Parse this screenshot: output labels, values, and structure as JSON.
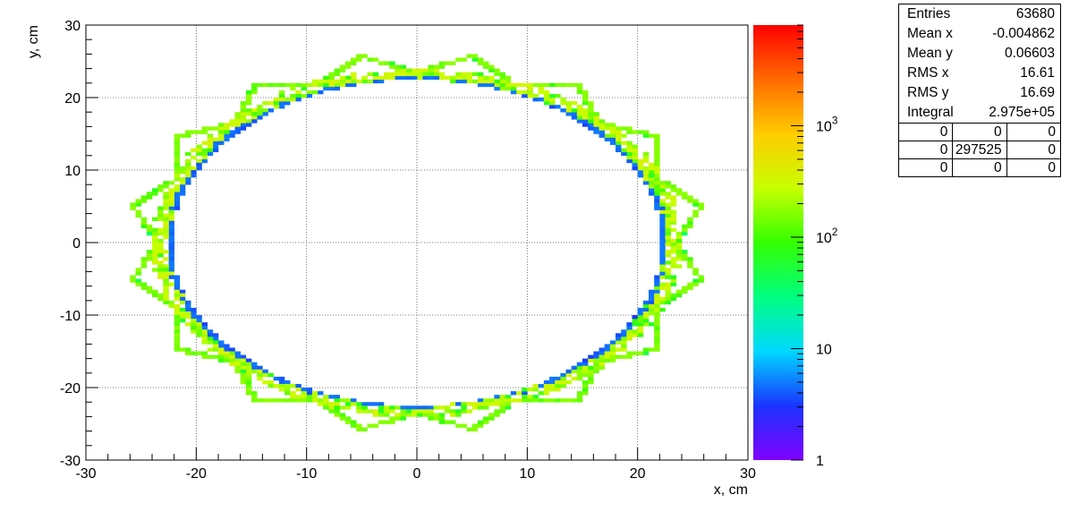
{
  "chart_data": {
    "type": "heatmap",
    "title": "",
    "xlabel": "x, cm",
    "ylabel": "y, cm",
    "xlim": [
      -30,
      30
    ],
    "ylim": [
      -30,
      30
    ],
    "x_ticks": [
      "-30",
      "-20",
      "-10",
      "0",
      "10",
      "20",
      "30"
    ],
    "y_ticks": [
      "-30",
      "-20",
      "-10",
      "0",
      "10",
      "20",
      "30"
    ],
    "grid": true,
    "z_scale": "log",
    "zlim": [
      1,
      8000
    ],
    "z_tick_labels": [
      {
        "value": 1,
        "base": "1",
        "exp": ""
      },
      {
        "value": 10,
        "base": "10",
        "exp": ""
      },
      {
        "value": 100,
        "base": "10",
        "exp": "2"
      },
      {
        "value": 1000,
        "base": "10",
        "exp": "3"
      }
    ],
    "palette": [
      "#8000ff",
      "#1a34ff",
      "#00d8ff",
      "#00ff80",
      "#33ff00",
      "#c8ff00",
      "#ffcc00",
      "#ff6a00",
      "#ff0000"
    ],
    "structure": {
      "inner_ellipse": {
        "cx": 0,
        "cy": 0,
        "rx": 22.5,
        "ry": 22.7,
        "value": 3
      },
      "outer_lobes": {
        "count": 16,
        "radius": 26.3,
        "value": 90
      },
      "outer_ring_radius": 23.3
    }
  },
  "stats": {
    "rows": [
      {
        "label": "Entries",
        "value": "63680"
      },
      {
        "label": "Mean x",
        "value": "-0.004862"
      },
      {
        "label": "Mean y",
        "value": "0.06603"
      },
      {
        "label": "RMS x",
        "value": "16.61"
      },
      {
        "label": "RMS y",
        "value": "16.69"
      },
      {
        "label": "Integral",
        "value": "2.975e+05"
      }
    ],
    "grid": [
      [
        "0",
        "0",
        "0"
      ],
      [
        "0",
        "297525",
        "0"
      ],
      [
        "0",
        "0",
        "0"
      ]
    ]
  }
}
